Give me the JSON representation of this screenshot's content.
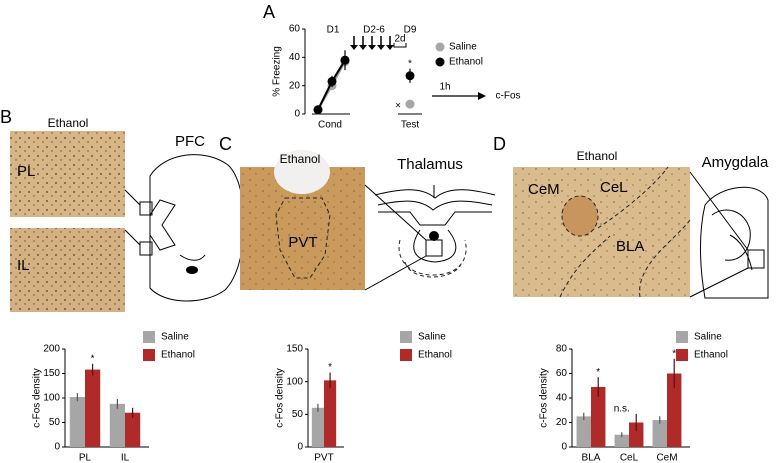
{
  "panel_labels": [
    "A",
    "B",
    "C",
    "D"
  ],
  "images": [
    {
      "title": "Ethanol",
      "regions": [
        "PL",
        "IL"
      ],
      "schematic": "PFC"
    },
    {
      "title": "Ethanol",
      "regions": [
        "PVT"
      ],
      "schematic": "Thalamus"
    },
    {
      "title": "Ethanol",
      "regions": [
        "CeM",
        "CeL",
        "BLA"
      ],
      "schematic": "Amygdala"
    }
  ],
  "chart_data": [
    {
      "type": "line",
      "ylabel": "% Freezing",
      "x_groups": [
        "Cond",
        "Test"
      ],
      "categories": [
        null,
        null,
        null,
        null,
        null
      ],
      "series": [
        {
          "name": "Saline",
          "color": "#a6a6a6",
          "values": [
            3,
            20,
            37,
            null,
            7
          ],
          "errors": [
            1,
            3,
            4,
            null,
            2
          ]
        },
        {
          "name": "Ethanol",
          "color": "#000000",
          "values": [
            3,
            23,
            38,
            null,
            27
          ],
          "errors": [
            1,
            4,
            7,
            null,
            5
          ]
        }
      ],
      "significance": [
        null,
        null,
        null,
        null,
        "*"
      ],
      "annotations": [
        "D1",
        "D2-6",
        "D9",
        "2d",
        "×",
        "1h",
        "c-Fos"
      ],
      "ylim": [
        0,
        60
      ],
      "yticks": [
        0,
        20,
        40,
        60
      ]
    },
    {
      "type": "bar",
      "ylabel": "c-Fos density",
      "categories": [
        "PL",
        "IL"
      ],
      "series": [
        {
          "name": "Saline",
          "color": "#a6a6a6",
          "values": [
            102,
            88
          ],
          "errors": [
            8,
            10
          ]
        },
        {
          "name": "Ethanol",
          "color": "#b02a2a",
          "values": [
            158,
            70
          ],
          "errors": [
            12,
            10
          ]
        }
      ],
      "significance": [
        "*",
        null
      ],
      "ylim": [
        0,
        200
      ],
      "yticks": [
        0,
        50,
        100,
        150,
        200
      ]
    },
    {
      "type": "bar",
      "ylabel": "c-Fos density",
      "categories": [
        "PVT"
      ],
      "series": [
        {
          "name": "Saline",
          "color": "#a6a6a6",
          "values": [
            60
          ],
          "errors": [
            6
          ]
        },
        {
          "name": "Ethanol",
          "color": "#b02a2a",
          "values": [
            102
          ],
          "errors": [
            12
          ]
        }
      ],
      "significance": [
        "*"
      ],
      "ylim": [
        0,
        150
      ],
      "yticks": [
        0,
        50,
        100,
        150
      ]
    },
    {
      "type": "bar",
      "ylabel": "c-Fos density",
      "categories": [
        "BLA",
        "CeL",
        "CeM"
      ],
      "series": [
        {
          "name": "Saline",
          "color": "#a6a6a6",
          "values": [
            25,
            10,
            22
          ],
          "errors": [
            3,
            2,
            3
          ]
        },
        {
          "name": "Ethanol",
          "color": "#b02a2a",
          "values": [
            49,
            20,
            60
          ],
          "errors": [
            8,
            7,
            12
          ]
        }
      ],
      "significance": [
        "*",
        "n.s.",
        "*"
      ],
      "ylim": [
        0,
        80
      ],
      "yticks": [
        0,
        20,
        40,
        60,
        80
      ]
    }
  ]
}
